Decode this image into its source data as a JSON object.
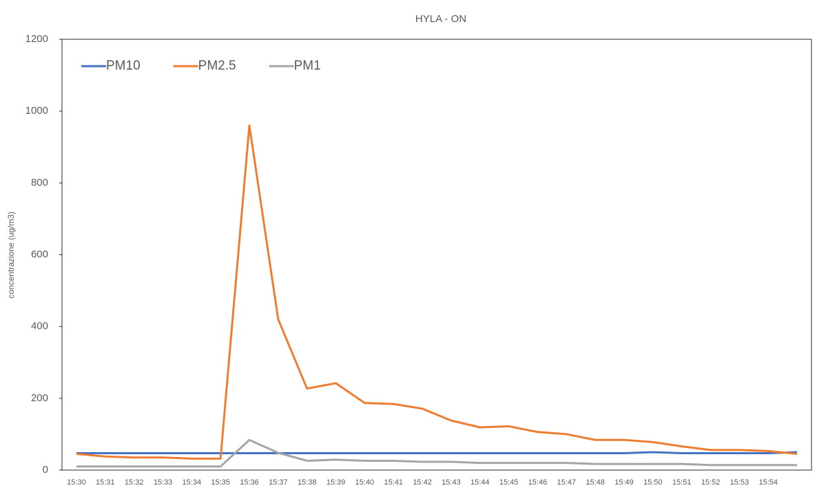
{
  "chart_data": {
    "type": "line",
    "title": "HYLA - ON",
    "y_label": "concentrazione (ug/m3)",
    "categories": [
      "15:30",
      "15:31",
      "15:32",
      "15:33",
      "15:34",
      "15:35",
      "15:36",
      "15:37",
      "15:38",
      "15:39",
      "15:40",
      "15:41",
      "15:42",
      "15:43",
      "15:44",
      "15:45",
      "15:46",
      "15:47",
      "15:48",
      "15:49",
      "15:50",
      "15:51",
      "15:52",
      "15:53",
      "15:54",
      null
    ],
    "series": [
      {
        "name": "PM10",
        "color": "#4472c4",
        "values": [
          47,
          47,
          47,
          47,
          47,
          47,
          47,
          47,
          47,
          47,
          47,
          47,
          47,
          47,
          47,
          47,
          47,
          47,
          47,
          47,
          50,
          47,
          47,
          47,
          47,
          50
        ]
      },
      {
        "name": "PM2.5",
        "color": "#ed7d31",
        "values": [
          45,
          38,
          35,
          35,
          32,
          32,
          960,
          420,
          227,
          242,
          187,
          184,
          171,
          138,
          119,
          122,
          106,
          100,
          84,
          84,
          78,
          66,
          56,
          56,
          53,
          45
        ]
      },
      {
        "name": "PM1",
        "color": "#a5a5a5",
        "values": [
          10,
          10,
          10,
          10,
          10,
          10,
          84,
          48,
          26,
          29,
          26,
          26,
          23,
          23,
          20,
          20,
          20,
          20,
          17,
          17,
          17,
          17,
          14,
          14,
          14,
          14
        ]
      }
    ],
    "ylim": [
      0,
      1200
    ],
    "yticks": [
      0,
      200,
      400,
      600,
      800,
      1000,
      1200
    ],
    "legend": "top-left"
  }
}
